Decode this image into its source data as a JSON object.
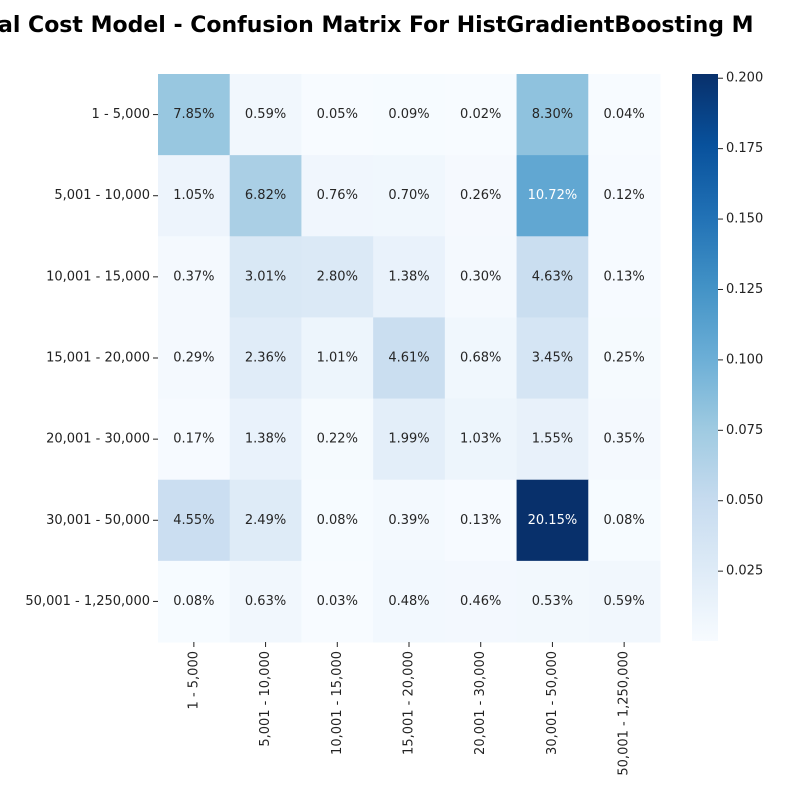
{
  "chart_data": {
    "type": "heatmap",
    "title": "al Cost Model - Confusion Matrix For HistGradientBoosting  M",
    "categories": [
      "1 - 5,000",
      "5,001 - 10,000",
      "10,001 - 15,000",
      "15,001 - 20,000",
      "20,001 - 30,000",
      "30,001 - 50,000",
      "50,001 - 1,250,000"
    ],
    "values": [
      [
        0.0785,
        0.0059,
        0.0005,
        0.0009,
        0.0002,
        0.083,
        0.0004
      ],
      [
        0.0105,
        0.0682,
        0.0076,
        0.007,
        0.0026,
        0.1072,
        0.0012
      ],
      [
        0.0037,
        0.0301,
        0.028,
        0.0138,
        0.003,
        0.0463,
        0.0013
      ],
      [
        0.0029,
        0.0236,
        0.0101,
        0.0461,
        0.0068,
        0.0345,
        0.0025
      ],
      [
        0.0017,
        0.0138,
        0.0022,
        0.0199,
        0.0103,
        0.0155,
        0.0035
      ],
      [
        0.0455,
        0.0249,
        0.0008,
        0.0039,
        0.0013,
        0.2015,
        0.0008
      ],
      [
        0.0008,
        0.0063,
        0.0003,
        0.0048,
        0.0046,
        0.0053,
        0.0059
      ]
    ],
    "value_labels": [
      [
        "7.85%",
        "0.59%",
        "0.05%",
        "0.09%",
        "0.02%",
        "8.30%",
        "0.04%"
      ],
      [
        "1.05%",
        "6.82%",
        "0.76%",
        "0.70%",
        "0.26%",
        "10.72%",
        "0.12%"
      ],
      [
        "0.37%",
        "3.01%",
        "2.80%",
        "1.38%",
        "0.30%",
        "4.63%",
        "0.13%"
      ],
      [
        "0.29%",
        "2.36%",
        "1.01%",
        "4.61%",
        "0.68%",
        "3.45%",
        "0.25%"
      ],
      [
        "0.17%",
        "1.38%",
        "0.22%",
        "1.99%",
        "1.03%",
        "1.55%",
        "0.35%"
      ],
      [
        "4.55%",
        "2.49%",
        "0.08%",
        "0.39%",
        "0.13%",
        "20.15%",
        "0.08%"
      ],
      [
        "0.08%",
        "0.63%",
        "0.03%",
        "0.48%",
        "0.46%",
        "0.53%",
        "0.59%"
      ]
    ],
    "colormap": "Blues",
    "zlim": [
      0.0002,
      0.2015
    ],
    "zticks": [
      0.025,
      {
        "value": 0.05,
        "label": "0.050"
      },
      0.075,
      {
        "value": 0.1,
        "label": "0.100"
      },
      0.125,
      {
        "value": 0.15,
        "label": "0.150"
      },
      0.175,
      {
        "value": 0.2,
        "label": "0.200"
      }
    ]
  }
}
